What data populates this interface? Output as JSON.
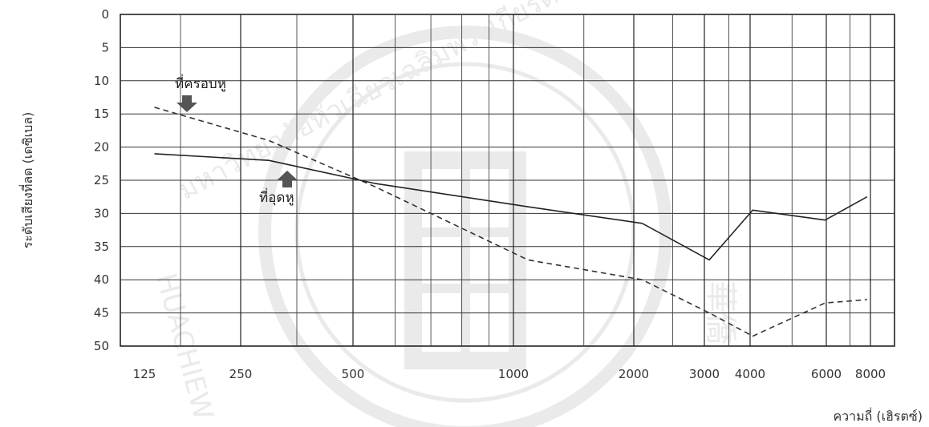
{
  "chart_data": {
    "type": "line",
    "ylabel": "ระดับเสียงที่ลด (เดซิเบล)",
    "xlabel": "ความถี่ (เฮิรตซ์)",
    "x_ticks": [
      125,
      250,
      500,
      1000,
      2000,
      3000,
      4000,
      6000,
      8000
    ],
    "x_tick_labels": [
      "125",
      "250",
      "500",
      "1000",
      "2000",
      "3000",
      "4000",
      "6000",
      "8000"
    ],
    "y_ticks": [
      0,
      5,
      10,
      15,
      20,
      25,
      30,
      35,
      40,
      45,
      50
    ],
    "y_tick_labels": [
      "0",
      "5",
      "10",
      "15",
      "20",
      "25",
      "30",
      "35",
      "40",
      "45",
      "50"
    ],
    "ylim": [
      0,
      50
    ],
    "y_inverted": true,
    "grid": true,
    "series": [
      {
        "name": "ที่ครอบหู",
        "style": "dashed",
        "color": "#333333",
        "points": [
          {
            "x": 125,
            "y": 14
          },
          {
            "x": 250,
            "y": 19
          },
          {
            "x": 500,
            "y": 26
          },
          {
            "x": 1000,
            "y": 37
          },
          {
            "x": 2000,
            "y": 40
          },
          {
            "x": 3000,
            "y": 45
          },
          {
            "x": 4000,
            "y": 48.5
          },
          {
            "x": 6000,
            "y": 43.5
          },
          {
            "x": 8000,
            "y": 43
          }
        ]
      },
      {
        "name": "ที่อุดหู",
        "style": "solid",
        "color": "#222222",
        "points": [
          {
            "x": 125,
            "y": 21
          },
          {
            "x": 250,
            "y": 22
          },
          {
            "x": 500,
            "y": 25.5
          },
          {
            "x": 1000,
            "y": 29
          },
          {
            "x": 2000,
            "y": 31.5
          },
          {
            "x": 3000,
            "y": 37
          },
          {
            "x": 4000,
            "y": 29.5
          },
          {
            "x": 6000,
            "y": 31
          },
          {
            "x": 8000,
            "y": 27.5
          }
        ]
      }
    ],
    "annotations": [
      {
        "text": "ที่ครอบหู",
        "arrow": "down",
        "series": "ที่ครอบหู"
      },
      {
        "text": "ที่อุดหู",
        "arrow": "up",
        "series": "ที่อุดหู"
      }
    ]
  },
  "watermark": {
    "arc_text": "มหาวิทยาลัยหัวเฉียวเฉลิมพระเกียรติ",
    "side_text": "HUACHIEW",
    "seal_text": "華僑",
    "color": "#8a8a8a"
  }
}
